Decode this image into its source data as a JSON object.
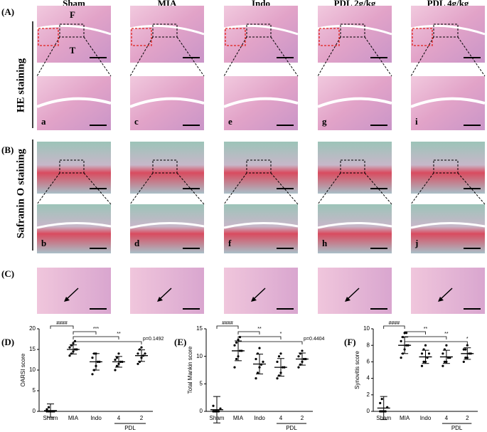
{
  "panel_labels": [
    "(A)",
    "(B)",
    "(C)",
    "(D)",
    "(E)",
    "(F)"
  ],
  "column_headers": [
    "Sham",
    "MIA",
    "Indo",
    "PDL 2g/kg",
    "PDL 4g/kg"
  ],
  "row_labels": [
    "HE staining",
    "Safranin O staining"
  ],
  "he_landmarks": [
    "F",
    "T"
  ],
  "image_labels_he": [
    "a",
    "c",
    "e",
    "g",
    "i"
  ],
  "image_labels_saf": [
    "b",
    "d",
    "f",
    "h",
    "j"
  ],
  "chart_data": [
    {
      "type": "dot",
      "y_label": "OARSI score",
      "categories": [
        "Sham",
        "MIA",
        "Indo",
        "4",
        "2"
      ],
      "group_label": "PDL",
      "values": [
        0.2,
        15,
        12,
        12,
        13.5
      ],
      "errors": [
        1.6,
        1.1,
        2,
        1.3,
        1.4
      ],
      "points": [
        [
          0,
          0,
          0,
          0,
          0,
          0.5,
          1,
          0
        ],
        [
          13.5,
          14,
          14.5,
          15,
          15,
          15.5,
          16,
          16.5,
          17
        ],
        [
          9,
          10,
          11,
          12,
          12,
          13,
          14,
          14
        ],
        [
          10,
          11,
          11.5,
          12,
          12,
          12.5,
          13,
          14
        ],
        [
          11.5,
          12,
          13,
          13.5,
          14,
          14,
          15,
          15.5
        ]
      ],
      "significance": [
        "####",
        null,
        "***",
        "**",
        "p=0.1492"
      ],
      "ylim": [
        0,
        20
      ],
      "yticks": [
        0,
        5,
        10,
        15,
        20
      ],
      "color": "#000000"
    },
    {
      "type": "dot",
      "y_label": "Total Mankin score",
      "categories": [
        "Sham",
        "MIA",
        "Indo",
        "4",
        "2"
      ],
      "group_label": "PDL",
      "values": [
        0.3,
        11,
        8.6,
        8,
        9.5
      ],
      "errors": [
        2.4,
        1.8,
        1.8,
        1.6,
        1.1
      ],
      "points": [
        [
          0,
          0,
          0,
          0,
          0.5,
          1,
          0,
          0
        ],
        [
          8,
          9.5,
          10,
          11,
          11,
          12,
          12.5,
          13,
          13.5
        ],
        [
          6,
          7,
          8,
          8.5,
          9,
          9.5,
          10.5,
          11.5
        ],
        [
          6,
          6.5,
          7,
          8,
          8,
          9,
          10,
          10.5
        ],
        [
          8,
          8.5,
          9,
          9.5,
          9.5,
          10,
          10.5,
          11
        ]
      ],
      "significance": [
        "####",
        null,
        "**",
        "*",
        "p=0.4404"
      ],
      "ylim": [
        0,
        15
      ],
      "yticks": [
        0,
        5,
        10,
        15
      ],
      "color": "#000000"
    },
    {
      "type": "dot",
      "y_label": "Synovitis score",
      "categories": [
        "Sham",
        "MIA",
        "Indo",
        "4",
        "2"
      ],
      "group_label": "PDL",
      "values": [
        0.4,
        8,
        6.6,
        6.6,
        7
      ],
      "errors": [
        1.4,
        1,
        0.8,
        0.8,
        0.7
      ],
      "points": [
        [
          0,
          0,
          0,
          0,
          0.5,
          1,
          1.5,
          0
        ],
        [
          6.5,
          7,
          7.5,
          8,
          8,
          8.5,
          9,
          9.5,
          9.5
        ],
        [
          5.5,
          6,
          6,
          6.5,
          7,
          7,
          7.5,
          8
        ],
        [
          5.5,
          6,
          6,
          6.5,
          6.5,
          7,
          7.5,
          8
        ],
        [
          6,
          6.5,
          6.5,
          7,
          7,
          7.5,
          7.5,
          8
        ]
      ],
      "significance": [
        "####",
        null,
        "**",
        "**",
        "*"
      ],
      "ylim": [
        0,
        10
      ],
      "yticks": [
        0,
        2,
        4,
        6,
        8,
        10
      ],
      "color": "#000000"
    }
  ]
}
